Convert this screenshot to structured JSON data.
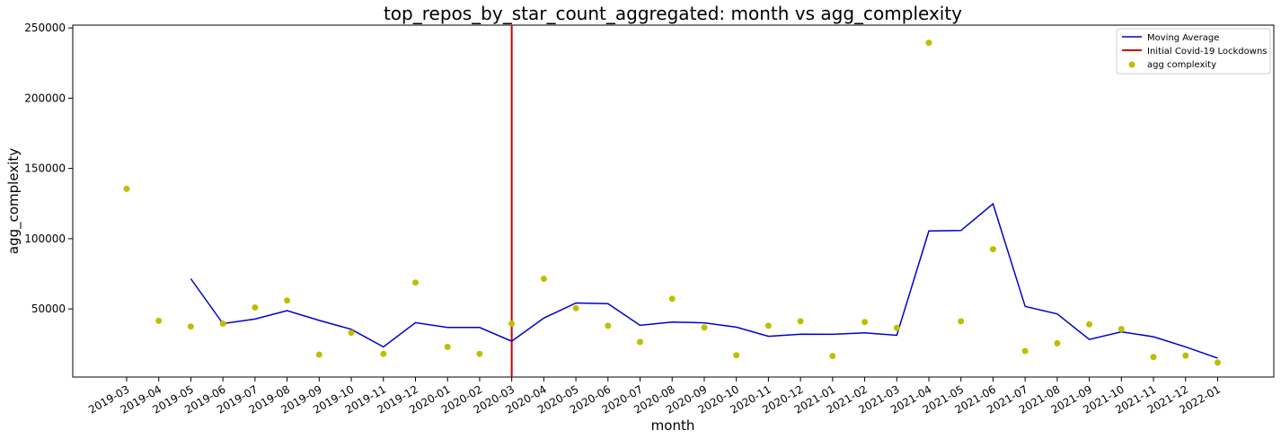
{
  "chart_data": {
    "type": "line",
    "title": "top_repos_by_star_count_aggregated: month vs agg_complexity",
    "xlabel": "month",
    "ylabel": "agg_complexity",
    "ylim": [
      1500,
      252000
    ],
    "yticks": [
      50000,
      100000,
      150000,
      200000,
      250000
    ],
    "x": [
      "2019-03",
      "2019-04",
      "2019-05",
      "2019-06",
      "2019-07",
      "2019-08",
      "2019-09",
      "2019-10",
      "2019-11",
      "2019-12",
      "2020-01",
      "2020-02",
      "2020-03",
      "2020-04",
      "2020-05",
      "2020-06",
      "2020-07",
      "2020-08",
      "2020-09",
      "2020-10",
      "2020-11",
      "2020-12",
      "2021-01",
      "2021-02",
      "2021-03",
      "2021-04",
      "2021-05",
      "2021-06",
      "2021-07",
      "2021-08",
      "2021-09",
      "2021-10",
      "2021-11",
      "2021-12",
      "2022-01"
    ],
    "series": [
      {
        "name": "Moving Average",
        "kind": "line",
        "color": "#0000cc",
        "values": [
          null,
          null,
          71500,
          39500,
          42800,
          48800,
          41800,
          35500,
          23000,
          40200,
          36800,
          36800,
          27000,
          43500,
          54200,
          53700,
          38300,
          40700,
          40100,
          37000,
          30500,
          32000,
          31900,
          33000,
          31200,
          105500,
          105800,
          124800,
          51800,
          46400,
          28300,
          33700,
          30200,
          23000,
          15000
        ]
      },
      {
        "name": "agg complexity",
        "kind": "scatter",
        "color": "#bfbf00",
        "values": [
          135500,
          41500,
          37500,
          39500,
          51000,
          56000,
          17500,
          33000,
          18000,
          68800,
          23000,
          18000,
          39500,
          71500,
          50500,
          38000,
          26500,
          57200,
          36700,
          17000,
          38000,
          41200,
          16500,
          40700,
          36500,
          239500,
          41200,
          92500,
          20000,
          25500,
          39000,
          35700,
          15800,
          16800,
          11800
        ]
      }
    ],
    "vline": {
      "name": "Initial Covid-19 Lockdowns",
      "x": "2020-03",
      "color": "#cc0000"
    },
    "legend": {
      "placement": "top-right"
    }
  }
}
